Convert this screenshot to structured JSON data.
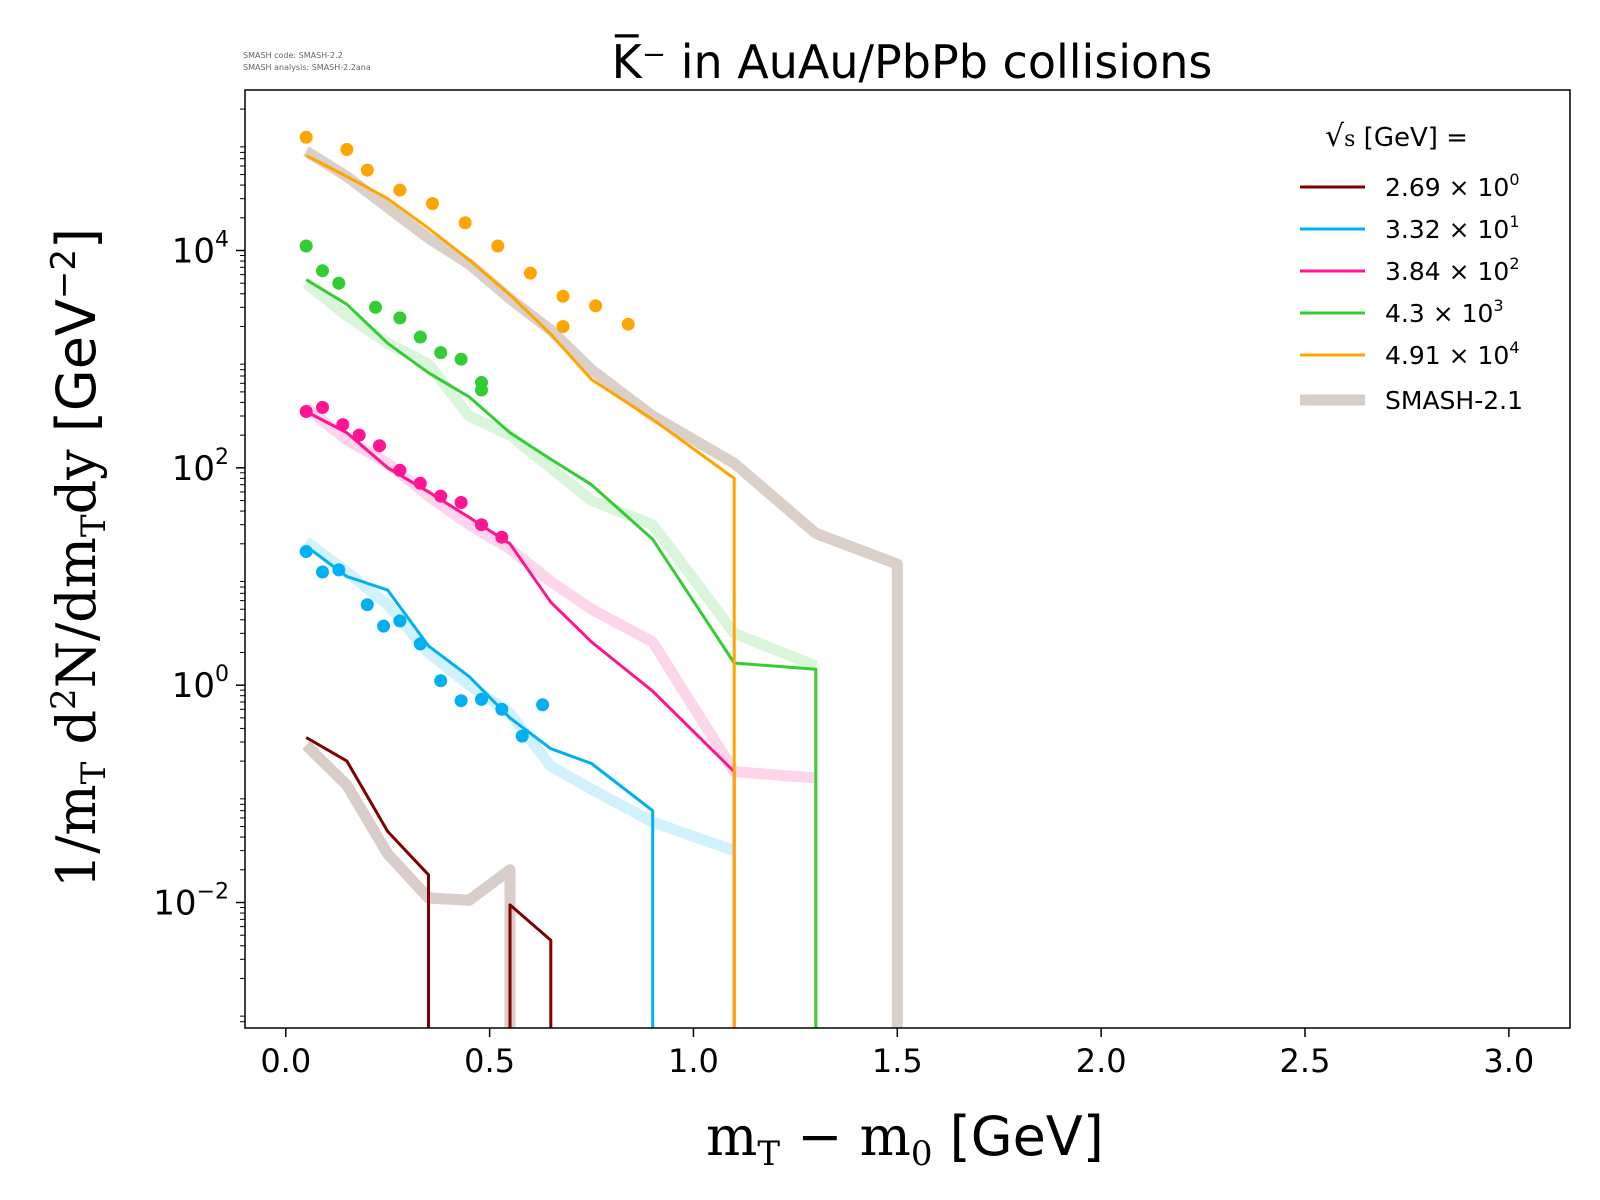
{
  "meta_text": {
    "code_line": "SMASH code:      SMASH-2.2",
    "analysis_line": "SMASH analysis: SMASH-2.2ana"
  },
  "chart_data": {
    "type": "line",
    "title": "K̅⁻ in AuAu/PbPb collisions",
    "xlabel": "m_T − m_0 [GeV]",
    "xlabel_parts": {
      "math": "m",
      "sub1": "T",
      "minus": " − m",
      "sub2": "0",
      "unit": " [GeV]"
    },
    "ylabel": "1/m_T d²N/dm_T dy [GeV⁻²]",
    "ylabel_parts": {
      "a": "1/m",
      "sub1": "T",
      "b": " d",
      "sup1": "2",
      "c": "N/dm",
      "sub2": "T",
      "d": "dy ",
      "unit": "[GeV",
      "sup2": "−2",
      "close": "]"
    },
    "xlim": [
      -0.1,
      3.15
    ],
    "ylim": [
      0.0007,
      300000
    ],
    "yscale": "log",
    "xticks": [
      "0.0",
      "0.5",
      "1.0",
      "1.5",
      "2.0",
      "2.5",
      "3.0"
    ],
    "ytick_values": [
      0.01,
      1,
      100,
      10000
    ],
    "ytick_labels": [
      {
        "base": "10",
        "exp": "−2"
      },
      {
        "base": "10",
        "exp": "0"
      },
      {
        "base": "10",
        "exp": "2"
      },
      {
        "base": "10",
        "exp": "4"
      }
    ],
    "legend": {
      "position": "top-right",
      "title": "√s [GeV] =",
      "title_parts": {
        "sqrt": "√",
        "s": "s",
        "rest": "  [GeV] ="
      },
      "entries": [
        {
          "mant": "2.69",
          "exp": "0",
          "color": "#800000"
        },
        {
          "mant": "3.32",
          "exp": "1",
          "color": "#00b0f0"
        },
        {
          "mant": "3.84",
          "exp": "2",
          "color": "#ff1493"
        },
        {
          "mant": "4.3",
          "exp": "3",
          "color": "#32cd32"
        },
        {
          "mant": "4.91",
          "exp": "4",
          "color": "#ffa500"
        }
      ],
      "ref_label": "SMASH-2.1",
      "ref_color": "#d8ccc8",
      "times": "× 10"
    },
    "series": [
      {
        "label": "2.69 × 10⁰",
        "color": "#800000",
        "line": {
          "x": [
            0.05,
            0.15,
            0.25,
            0.35,
            0.35,
            0.55,
            0.55,
            0.65,
            0.65
          ],
          "y": [
            0.33,
            0.2,
            0.045,
            0.018,
            0.0005,
            0.0005,
            0.0095,
            0.0045,
            0.0005
          ]
        },
        "ref": {
          "x": [
            0.05,
            0.15,
            0.25,
            0.35,
            0.45,
            0.55,
            0.55
          ],
          "y": [
            0.28,
            0.12,
            0.028,
            0.011,
            0.0105,
            0.02,
            0.0005
          ]
        },
        "points": {
          "x": [],
          "y": []
        }
      },
      {
        "label": "3.32 × 10¹",
        "color": "#00b0f0",
        "line": {
          "x": [
            0.05,
            0.15,
            0.25,
            0.35,
            0.45,
            0.55,
            0.65,
            0.75,
            0.9,
            0.9
          ],
          "y": [
            19,
            10,
            7.5,
            2.3,
            1.2,
            0.5,
            0.26,
            0.19,
            0.07,
            0.0005
          ]
        },
        "ref": {
          "x": [
            0.05,
            0.15,
            0.25,
            0.35,
            0.45,
            0.55,
            0.65,
            0.75,
            0.9,
            1.1
          ],
          "y": [
            21,
            11,
            5.5,
            2.0,
            1.0,
            0.55,
            0.18,
            0.11,
            0.055,
            0.03
          ]
        },
        "points": {
          "x": [
            0.05,
            0.09,
            0.13,
            0.2,
            0.24,
            0.28,
            0.33,
            0.38,
            0.43,
            0.48,
            0.53,
            0.58,
            0.63
          ],
          "y": [
            17,
            11,
            11.5,
            5.5,
            3.5,
            3.9,
            2.4,
            1.1,
            0.72,
            0.74,
            0.6,
            0.34,
            0.66
          ]
        }
      },
      {
        "label": "3.84 × 10²",
        "color": "#ff1493",
        "line": {
          "x": [
            0.05,
            0.15,
            0.25,
            0.35,
            0.45,
            0.55,
            0.65,
            0.75,
            0.9,
            1.1,
            1.1
          ],
          "y": [
            330,
            210,
            100,
            60,
            35,
            20,
            5.8,
            2.5,
            0.88,
            0.16,
            0.0005
          ]
        },
        "ref": {
          "x": [
            0.05,
            0.15,
            0.25,
            0.35,
            0.45,
            0.55,
            0.65,
            0.75,
            0.9,
            1.1,
            1.3
          ],
          "y": [
            360,
            180,
            110,
            55,
            30,
            18,
            9,
            5,
            2.5,
            0.16,
            0.14
          ]
        },
        "points": {
          "x": [
            0.05,
            0.09,
            0.14,
            0.18,
            0.23,
            0.28,
            0.33,
            0.38,
            0.43,
            0.48,
            0.53
          ],
          "y": [
            330,
            360,
            250,
            200,
            160,
            95,
            72,
            55,
            48,
            30,
            23
          ]
        }
      },
      {
        "label": "4.3 × 10³",
        "color": "#32cd32",
        "line": {
          "x": [
            0.05,
            0.15,
            0.25,
            0.35,
            0.45,
            0.55,
            0.65,
            0.75,
            0.9,
            1.1,
            1.3,
            1.3
          ],
          "y": [
            5400,
            3200,
            1400,
            750,
            450,
            210,
            120,
            70,
            22,
            1.6,
            1.4,
            0.0005
          ]
        },
        "ref": {
          "x": [
            0.05,
            0.15,
            0.25,
            0.35,
            0.45,
            0.55,
            0.65,
            0.75,
            0.9,
            1.1,
            1.3
          ],
          "y": [
            5000,
            2500,
            1400,
            900,
            300,
            200,
            100,
            50,
            30,
            3,
            1.5
          ]
        },
        "points": {
          "x": [
            0.05,
            0.09,
            0.13,
            0.22,
            0.28,
            0.33,
            0.38,
            0.43,
            0.48,
            0.48
          ],
          "y": [
            11000,
            6500,
            5000,
            3000,
            2400,
            1600,
            1150,
            1000,
            610,
            520
          ]
        }
      },
      {
        "label": "4.91 × 10⁴",
        "color": "#ffa500",
        "line": {
          "x": [
            0.05,
            0.15,
            0.25,
            0.35,
            0.45,
            0.55,
            0.65,
            0.75,
            0.9,
            1.1,
            1.1
          ],
          "y": [
            75000,
            48000,
            30000,
            16000,
            8200,
            3900,
            1700,
            650,
            280,
            80,
            0.0005
          ]
        },
        "ref": {
          "x": [
            0.05,
            0.15,
            0.25,
            0.35,
            0.45,
            0.55,
            0.65,
            0.75,
            0.9,
            1.1,
            1.3,
            1.5,
            1.5
          ],
          "y": [
            82000,
            48000,
            25000,
            13000,
            7500,
            3600,
            1850,
            800,
            300,
            110,
            25,
            13,
            0.0005
          ]
        },
        "points": {
          "x": [
            0.05,
            0.15,
            0.2,
            0.28,
            0.36,
            0.44,
            0.52,
            0.6,
            0.68,
            0.68,
            0.76,
            0.84
          ],
          "y": [
            110000,
            85000,
            55000,
            36000,
            27000,
            18000,
            11000,
            6200,
            3800,
            2000,
            3100,
            2100
          ]
        }
      }
    ]
  }
}
